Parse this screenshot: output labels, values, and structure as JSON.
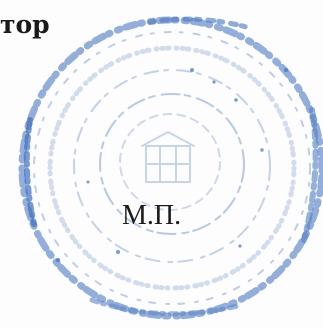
{
  "document": {
    "heading_fragment": "тор",
    "seal_caption": "М.П."
  },
  "stamp": {
    "ink_color": "#4f7fc4",
    "ink_color_light": "#9bb6de"
  }
}
